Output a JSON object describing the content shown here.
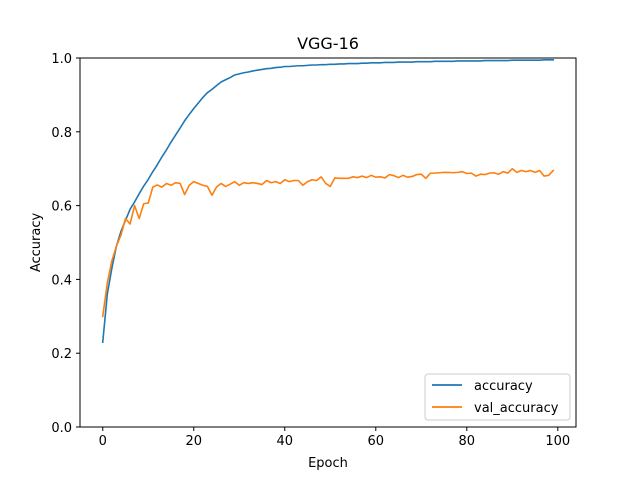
{
  "chart_data": {
    "type": "line",
    "title": "VGG-16",
    "xlabel": "Epoch",
    "ylabel": "Accuracy",
    "xlim": [
      -5,
      104
    ],
    "ylim": [
      0.0,
      1.0
    ],
    "xticks": [
      "0",
      "20",
      "40",
      "60",
      "80",
      "100"
    ],
    "yticks": [
      "0.0",
      "0.2",
      "0.4",
      "0.6",
      "0.8",
      "1.0"
    ],
    "grid": false,
    "legend_position": "lower right",
    "series": [
      {
        "name": "accuracy",
        "color": "#1f77b4",
        "values": [
          0.23,
          0.36,
          0.43,
          0.49,
          0.53,
          0.56,
          0.59,
          0.61,
          0.632,
          0.653,
          0.671,
          0.692,
          0.711,
          0.732,
          0.751,
          0.772,
          0.791,
          0.81,
          0.83,
          0.847,
          0.863,
          0.878,
          0.893,
          0.906,
          0.915,
          0.925,
          0.935,
          0.941,
          0.947,
          0.954,
          0.957,
          0.96,
          0.962,
          0.965,
          0.967,
          0.969,
          0.971,
          0.972,
          0.974,
          0.975,
          0.977,
          0.977,
          0.978,
          0.979,
          0.979,
          0.98,
          0.981,
          0.981,
          0.982,
          0.982,
          0.983,
          0.983,
          0.984,
          0.984,
          0.985,
          0.985,
          0.985,
          0.986,
          0.986,
          0.987,
          0.987,
          0.987,
          0.988,
          0.988,
          0.988,
          0.989,
          0.989,
          0.989,
          0.989,
          0.99,
          0.99,
          0.99,
          0.99,
          0.991,
          0.991,
          0.991,
          0.991,
          0.991,
          0.992,
          0.992,
          0.992,
          0.992,
          0.992,
          0.992,
          0.993,
          0.993,
          0.993,
          0.993,
          0.993,
          0.993,
          0.994,
          0.994,
          0.994,
          0.994,
          0.994,
          0.994,
          0.994,
          0.995,
          0.995,
          0.995
        ]
      },
      {
        "name": "val_accuracy",
        "color": "#ff7f0e",
        "values": [
          0.3,
          0.39,
          0.45,
          0.49,
          0.52,
          0.565,
          0.55,
          0.6,
          0.565,
          0.605,
          0.607,
          0.65,
          0.656,
          0.65,
          0.66,
          0.655,
          0.662,
          0.66,
          0.63,
          0.655,
          0.665,
          0.66,
          0.655,
          0.652,
          0.628,
          0.65,
          0.66,
          0.652,
          0.658,
          0.665,
          0.655,
          0.662,
          0.66,
          0.662,
          0.66,
          0.657,
          0.668,
          0.662,
          0.665,
          0.66,
          0.67,
          0.665,
          0.668,
          0.668,
          0.655,
          0.665,
          0.67,
          0.668,
          0.678,
          0.66,
          0.652,
          0.675,
          0.674,
          0.674,
          0.674,
          0.678,
          0.676,
          0.68,
          0.676,
          0.682,
          0.677,
          0.678,
          0.675,
          0.684,
          0.681,
          0.676,
          0.682,
          0.677,
          0.679,
          0.684,
          0.685,
          0.674,
          0.688,
          0.688,
          0.689,
          0.69,
          0.69,
          0.689,
          0.69,
          0.692,
          0.687,
          0.688,
          0.68,
          0.685,
          0.684,
          0.688,
          0.689,
          0.685,
          0.692,
          0.688,
          0.7,
          0.69,
          0.695,
          0.692,
          0.695,
          0.69,
          0.695,
          0.68,
          0.682,
          0.695
        ]
      }
    ]
  }
}
